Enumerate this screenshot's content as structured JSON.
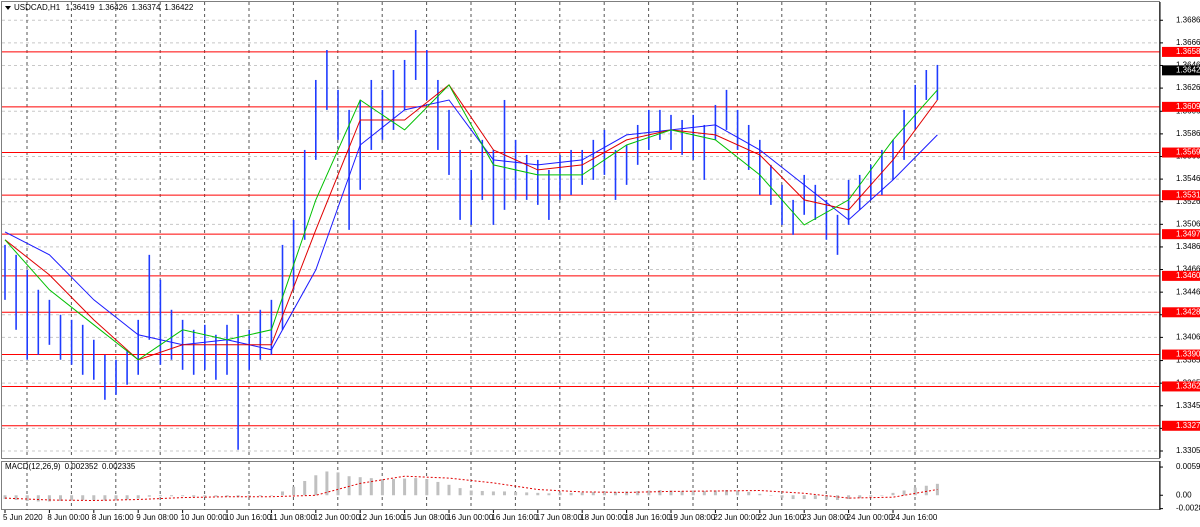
{
  "chart_data": {
    "type": "ohlc",
    "title": "USDCAD,H1",
    "header_values": [
      1.36419,
      1.36426,
      1.36374,
      1.36422
    ],
    "categories": [
      "5 Jun 2020",
      null,
      null,
      null,
      "8 Jun 00:00",
      null,
      null,
      null,
      "8 Jun 16:00",
      null,
      null,
      null,
      "9 Jun 08:00",
      null,
      null,
      null,
      "10 Jun 00:00",
      null,
      null,
      null,
      "10 Jun 16:00",
      null,
      null,
      null,
      "11 Jun 08:00",
      null,
      null,
      null,
      "12 Jun 00:00",
      null,
      null,
      null,
      "12 Jun 16:00",
      null,
      null,
      null,
      "15 Jun 08:00",
      null,
      null,
      null,
      "16 Jun 00:00",
      null,
      null,
      null,
      "16 Jun 16:00",
      null,
      null,
      null,
      "17 Jun 08:00",
      null,
      null,
      null,
      "18 Jun 00:00",
      null,
      null,
      null,
      "18 Jun 16:00",
      null,
      null,
      null,
      "19 Jun 08:00",
      null,
      null,
      null,
      "22 Jun 00:00",
      null,
      null,
      null,
      "22 Jun 16:00",
      null,
      null,
      null,
      "23 Jun 08:00",
      null,
      null,
      null,
      "24 Jun 00:00",
      null,
      null,
      null,
      "24 Jun 16:00",
      null,
      null,
      null,
      null
    ],
    "high": [
      1.34878,
      1.3479,
      1.34657,
      1.34481,
      1.34392,
      1.3426,
      1.34215,
      1.34171,
      1.34039,
      1.33906,
      1.33862,
      1.3395,
      1.34215,
      1.3479,
      1.34569,
      1.34304,
      1.34215,
      1.34127,
      1.34171,
      1.34083,
      1.34171,
      1.3426,
      1.34127,
      1.34304,
      1.34392,
      1.34878,
      1.35099,
      1.35718,
      1.36337,
      1.36602,
      1.36249,
      1.36072,
      1.3616,
      1.36337,
      1.36249,
      1.36425,
      1.36514,
      1.36779,
      1.36602,
      1.36337,
      1.36072,
      1.35718,
      1.35541,
      1.35807,
      1.35718,
      1.3616,
      1.35807,
      1.35674,
      1.3563,
      1.35541,
      1.35674,
      1.35718,
      1.35718,
      1.35807,
      1.35895,
      1.35718,
      1.35762,
      1.35939,
      1.36072,
      1.36072,
      1.36028,
      1.35983,
      1.36028,
      1.35939,
      1.36116,
      1.36249,
      1.36072,
      1.35939,
      1.35807,
      1.35586,
      1.35409,
      1.35276,
      1.35497,
      1.35409,
      1.35276,
      1.35144,
      1.35453,
      1.35497,
      1.35586,
      1.35718,
      1.35807,
      1.36072,
      1.36293,
      1.36425,
      1.3647
    ],
    "low": [
      1.34392,
      1.34127,
      1.33862,
      1.33906,
      1.33994,
      1.33862,
      1.33818,
      1.33729,
      1.33685,
      1.33508,
      1.33552,
      1.33641,
      1.33729,
      1.34039,
      1.33818,
      1.33862,
      1.33773,
      1.33729,
      1.33773,
      1.33685,
      1.33729,
      1.33066,
      1.33773,
      1.33862,
      1.33906,
      1.34127,
      1.34481,
      1.34923,
      1.3563,
      1.36072,
      1.35807,
      1.35011,
      1.35365,
      1.35718,
      1.35807,
      1.35895,
      1.36072,
      1.36337,
      1.3616,
      1.35718,
      1.35497,
      1.35099,
      1.35055,
      1.35276,
      1.35055,
      1.35188,
      1.35276,
      1.35276,
      1.35232,
      1.35099,
      1.35276,
      1.3532,
      1.35409,
      1.35453,
      1.35497,
      1.35276,
      1.35409,
      1.35586,
      1.35718,
      1.35807,
      1.35718,
      1.35674,
      1.3563,
      1.35453,
      1.35807,
      1.35895,
      1.35718,
      1.35541,
      1.3532,
      1.35232,
      1.35055,
      1.34967,
      1.35144,
      1.35099,
      1.34923,
      1.3479,
      1.35055,
      1.35188,
      1.35276,
      1.3532,
      1.35453,
      1.3563,
      1.35895,
      1.3616,
      1.3616
    ],
    "color": "#1f3cff",
    "ylim": [
      1.32993,
      1.37
    ],
    "yticks": [
      1.36865,
      1.36665,
      1.36465,
      1.36265,
      {
        "value": 1.3606,
        "label": "1.36060"
      },
      {
        "value": 1.3586,
        "label": "1.35860"
      },
      {
        "value": 1.3566,
        "label": "1.35660"
      },
      {
        "value": 1.3546,
        "label": "1.35460"
      },
      {
        "value": 1.3526,
        "label": "1.35260"
      },
      {
        "value": 1.3506,
        "label": "1.35060"
      },
      {
        "value": 1.3486,
        "label": "1.34860"
      },
      {
        "value": 1.3466,
        "label": "1.34660"
      },
      {
        "value": 1.3446,
        "label": "1.34460"
      },
      {
        "value": 1.3426,
        "label": "1.34260"
      },
      {
        "value": 1.3406,
        "label": "1.34060"
      },
      1.33855,
      1.33655,
      1.33455,
      1.33255,
      1.33055
    ],
    "grid": true,
    "moving_averages": [
      {
        "color": "#1a1aff",
        "values": [
          1.34993,
          1.3479,
          1.34392,
          1.34083,
          1.33994,
          1.34039,
          1.3395,
          1.34657,
          1.35762,
          1.36072,
          1.3616,
          1.3563,
          1.35586,
          1.3563,
          1.35851,
          1.35895,
          1.35939,
          1.35718,
          1.35409,
          1.35099,
          1.35453,
          1.35851
        ]
      },
      {
        "color": "#e00000",
        "values": [
          1.34923,
          1.34613,
          1.34215,
          1.33862,
          1.33994,
          1.33994,
          1.33994,
          1.35011,
          1.35983,
          1.35983,
          1.36293,
          1.35718,
          1.35541,
          1.35586,
          1.35807,
          1.35895,
          1.35851,
          1.35674,
          1.35276,
          1.35188,
          1.3563,
          1.3616
        ]
      },
      {
        "color": "#00c000",
        "values": [
          1.34923,
          1.34481,
          1.34171,
          1.33862,
          1.34127,
          1.34039,
          1.34127,
          1.35276,
          1.3616,
          1.35895,
          1.36293,
          1.35586,
          1.35497,
          1.35497,
          1.35762,
          1.35895,
          1.35807,
          1.35497,
          1.35055,
          1.35276,
          1.35807,
          1.36249
        ]
      }
    ],
    "levels": [
      1.36585,
      1.36099,
      1.35695,
      1.35318,
      1.34973,
      1.34604,
      1.34282,
      1.33908,
      1.33626,
      1.33278
    ],
    "level_color": "#ff0000",
    "current_price": 1.36422,
    "macd": {
      "title": "MACD(12,26,9)",
      "last_values": [
        0.002352,
        0.002335
      ],
      "ylim": [
        -0.0031,
        0.0072
      ],
      "yticks": [
        0.00593,
        {
          "value": 0,
          "label": "0.00"
        },
        -0.00281
      ],
      "histogram_color": "#c0c0c0",
      "signal_color": "#e00000",
      "values": [
        -0.0008,
        -0.001,
        -0.0012,
        -0.0013,
        -0.0013,
        -0.0012,
        -0.0011,
        -0.001,
        -0.001,
        -0.0011,
        -0.0011,
        -0.0009,
        -0.0007,
        -0.0003,
        -0.0002,
        -0.0002,
        -0.0002,
        -0.0003,
        -0.0003,
        -0.0003,
        -0.0003,
        -0.0004,
        -0.0003,
        -0.0002,
        0,
        0.0008,
        0.0018,
        0.003,
        0.0042,
        0.005,
        0.0048,
        0.004,
        0.0038,
        0.0036,
        0.0034,
        0.0034,
        0.0035,
        0.0036,
        0.0034,
        0.0028,
        0.0022,
        0.0015,
        0.001,
        0.0009,
        0.0008,
        0.0008,
        0.0007,
        0.0006,
        0.0005,
        0.0004,
        0.0005,
        0.0005,
        0.0006,
        0.0007,
        0.0008,
        0.0007,
        0.0008,
        0.0009,
        0.001,
        0.0011,
        0.001,
        0.0009,
        0.001,
        0.0009,
        0.001,
        0.0011,
        0.001,
        0.0007,
        0.0003,
        -0.0001,
        -0.0005,
        -0.0008,
        -0.0008,
        -0.0008,
        -0.0009,
        -0.001,
        -0.0008,
        -0.0006,
        -0.0003,
        0,
        0.0005,
        0.001,
        0.0016,
        0.002,
        0.0024
      ],
      "signal": [
        -0.0006,
        -0.001,
        -0.0011,
        -0.0009,
        -0.0005,
        -0.0003,
        -0.0003,
        0,
        0.0025,
        0.004,
        0.0036,
        0.0026,
        0.0012,
        0.0007,
        0.0006,
        0.0008,
        0.0009,
        0.001,
        0.0004,
        -0.0006,
        -0.0004,
        0.0012
      ]
    }
  }
}
